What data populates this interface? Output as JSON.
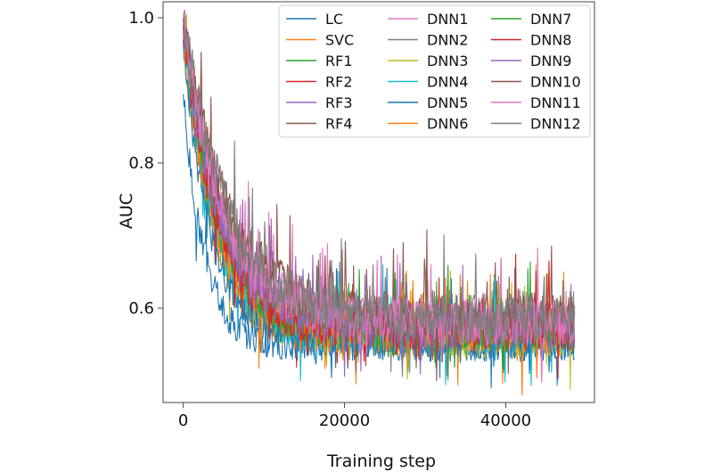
{
  "chart_data": {
    "type": "line",
    "title": "",
    "xlabel": "Training step",
    "ylabel": "AUC",
    "xlim": [
      -2500,
      51000
    ],
    "ylim": [
      0.47,
      1.022
    ],
    "xticks": [
      0,
      20000,
      40000
    ],
    "xtick_labels": [
      "0",
      "20000",
      "40000"
    ],
    "yticks": [
      0.6,
      0.8,
      1.0
    ],
    "ytick_labels": [
      "0.6",
      "0.8",
      "1.0"
    ],
    "x_max": 48500,
    "legend": {
      "position": "top-right",
      "columns": 3
    },
    "series": [
      {
        "name": "LC",
        "color": "#1f77b4",
        "start": 0.895,
        "floor": 0.548,
        "decay": 2600,
        "noise": 0.022
      },
      {
        "name": "SVC",
        "color": "#ff7f0e",
        "start": 0.975,
        "floor": 0.56,
        "decay": 3600,
        "noise": 0.026
      },
      {
        "name": "RF1",
        "color": "#2ca02c",
        "start": 0.99,
        "floor": 0.572,
        "decay": 4200,
        "noise": 0.028
      },
      {
        "name": "RF2",
        "color": "#d62728",
        "start": 0.99,
        "floor": 0.568,
        "decay": 4300,
        "noise": 0.028
      },
      {
        "name": "RF3",
        "color": "#9467bd",
        "start": 0.992,
        "floor": 0.575,
        "decay": 4600,
        "noise": 0.03
      },
      {
        "name": "RF4",
        "color": "#8c564b",
        "start": 0.995,
        "floor": 0.58,
        "decay": 5200,
        "noise": 0.03
      },
      {
        "name": "DNN1",
        "color": "#e377c2",
        "start": 0.995,
        "floor": 0.578,
        "decay": 5000,
        "noise": 0.032
      },
      {
        "name": "DNN2",
        "color": "#7f7f7f",
        "start": 0.995,
        "floor": 0.575,
        "decay": 4800,
        "noise": 0.03
      },
      {
        "name": "DNN3",
        "color": "#bcbd22",
        "start": 0.985,
        "floor": 0.56,
        "decay": 3800,
        "noise": 0.03
      },
      {
        "name": "DNN4",
        "color": "#17becf",
        "start": 0.98,
        "floor": 0.562,
        "decay": 3700,
        "noise": 0.026
      },
      {
        "name": "DNN5",
        "color": "#1f77b4",
        "start": 0.97,
        "floor": 0.556,
        "decay": 3300,
        "noise": 0.024
      },
      {
        "name": "DNN6",
        "color": "#ff7f0e",
        "start": 0.98,
        "floor": 0.565,
        "decay": 3900,
        "noise": 0.026
      },
      {
        "name": "DNN7",
        "color": "#2ca02c",
        "start": 0.988,
        "floor": 0.57,
        "decay": 4100,
        "noise": 0.028
      },
      {
        "name": "DNN8",
        "color": "#d62728",
        "start": 0.99,
        "floor": 0.57,
        "decay": 4200,
        "noise": 0.028
      },
      {
        "name": "DNN9",
        "color": "#9467bd",
        "start": 0.993,
        "floor": 0.574,
        "decay": 4500,
        "noise": 0.03
      },
      {
        "name": "DNN10",
        "color": "#8c564b",
        "start": 0.998,
        "floor": 0.585,
        "decay": 5600,
        "noise": 0.034
      },
      {
        "name": "DNN11",
        "color": "#e377c2",
        "start": 0.995,
        "floor": 0.58,
        "decay": 5100,
        "noise": 0.032
      },
      {
        "name": "DNN12",
        "color": "#7f7f7f",
        "start": 0.998,
        "floor": 0.585,
        "decay": 5500,
        "noise": 0.034
      }
    ]
  }
}
